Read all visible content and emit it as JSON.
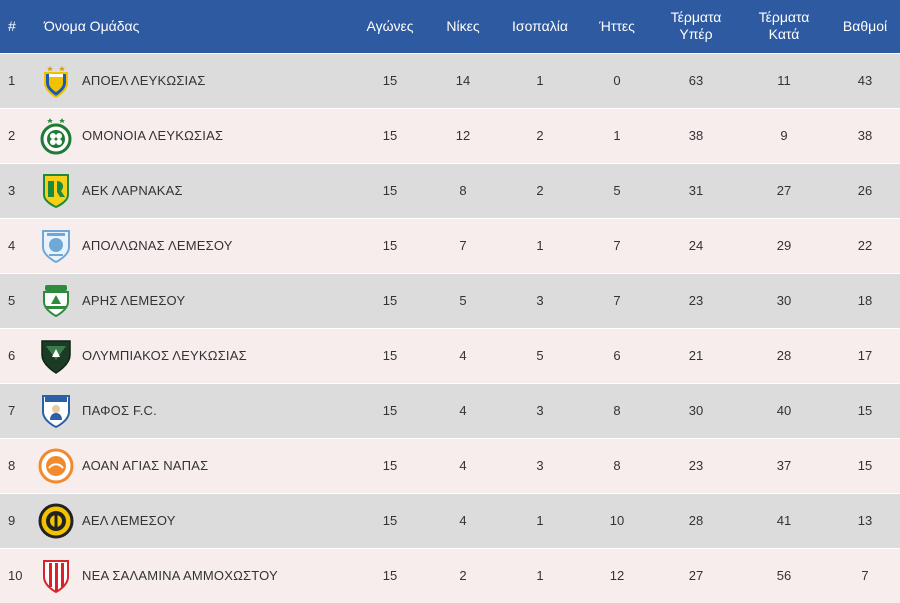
{
  "table": {
    "headers": {
      "pos": "#",
      "team": "Όνομα Ομάδας",
      "played": "Αγώνες",
      "wins": "Νίκες",
      "draws": "Ισοπαλία",
      "losses": "Ήττες",
      "goals_for_line1": "Τέρματα",
      "goals_for_line2": "Υπέρ",
      "goals_against_line1": "Τέρματα",
      "goals_against_line2": "Κατά",
      "points": "Βαθμοί"
    },
    "rows": [
      {
        "pos": "1",
        "team": "ΑΠΟΕΛ ΛΕΥΚΩΣΙΑΣ",
        "played": "15",
        "wins": "14",
        "draws": "1",
        "losses": "0",
        "gf": "63",
        "ga": "11",
        "pts": "43"
      },
      {
        "pos": "2",
        "team": "ΟΜΟΝΟΙΑ ΛΕΥΚΩΣΙΑΣ",
        "played": "15",
        "wins": "12",
        "draws": "2",
        "losses": "1",
        "gf": "38",
        "ga": "9",
        "pts": "38"
      },
      {
        "pos": "3",
        "team": "ΑΕΚ ΛΑΡΝΑΚΑΣ",
        "played": "15",
        "wins": "8",
        "draws": "2",
        "losses": "5",
        "gf": "31",
        "ga": "27",
        "pts": "26"
      },
      {
        "pos": "4",
        "team": "ΑΠΟΛΛΩΝΑΣ ΛΕΜΕΣΟΥ",
        "played": "15",
        "wins": "7",
        "draws": "1",
        "losses": "7",
        "gf": "24",
        "ga": "29",
        "pts": "22"
      },
      {
        "pos": "5",
        "team": "ΑΡΗΣ ΛΕΜΕΣΟΥ",
        "played": "15",
        "wins": "5",
        "draws": "3",
        "losses": "7",
        "gf": "23",
        "ga": "30",
        "pts": "18"
      },
      {
        "pos": "6",
        "team": "ΟΛΥΜΠΙΑΚΟΣ ΛΕΥΚΩΣΙΑΣ",
        "played": "15",
        "wins": "4",
        "draws": "5",
        "losses": "6",
        "gf": "21",
        "ga": "28",
        "pts": "17"
      },
      {
        "pos": "7",
        "team": "ΠΑΦΟΣ F.C.",
        "played": "15",
        "wins": "4",
        "draws": "3",
        "losses": "8",
        "gf": "30",
        "ga": "40",
        "pts": "15"
      },
      {
        "pos": "8",
        "team": "ΑΟΑΝ ΑΓΙΑΣ ΝΑΠΑΣ",
        "played": "15",
        "wins": "4",
        "draws": "3",
        "losses": "8",
        "gf": "23",
        "ga": "37",
        "pts": "15"
      },
      {
        "pos": "9",
        "team": "ΑΕΛ ΛΕΜΕΣΟΥ",
        "played": "15",
        "wins": "4",
        "draws": "1",
        "losses": "10",
        "gf": "28",
        "ga": "41",
        "pts": "13"
      },
      {
        "pos": "10",
        "team": "ΝΕΑ ΣΑΛΑΜΙΝΑ ΑΜΜΟΧΩΣΤΟΥ",
        "played": "15",
        "wins": "2",
        "draws": "1",
        "losses": "12",
        "gf": "27",
        "ga": "56",
        "pts": "7"
      }
    ],
    "crest_icons": [
      "apoel-crest-icon",
      "omonoia-crest-icon",
      "aek-crest-icon",
      "apollon-crest-icon",
      "aris-crest-icon",
      "olympiakos-crest-icon",
      "pafos-crest-icon",
      "aoan-crest-icon",
      "ael-crest-icon",
      "nea-salamina-crest-icon"
    ]
  },
  "colors": {
    "header_bg": "#2d5aa0",
    "row_odd": "#dcdcdc",
    "row_even": "#f7eded"
  }
}
